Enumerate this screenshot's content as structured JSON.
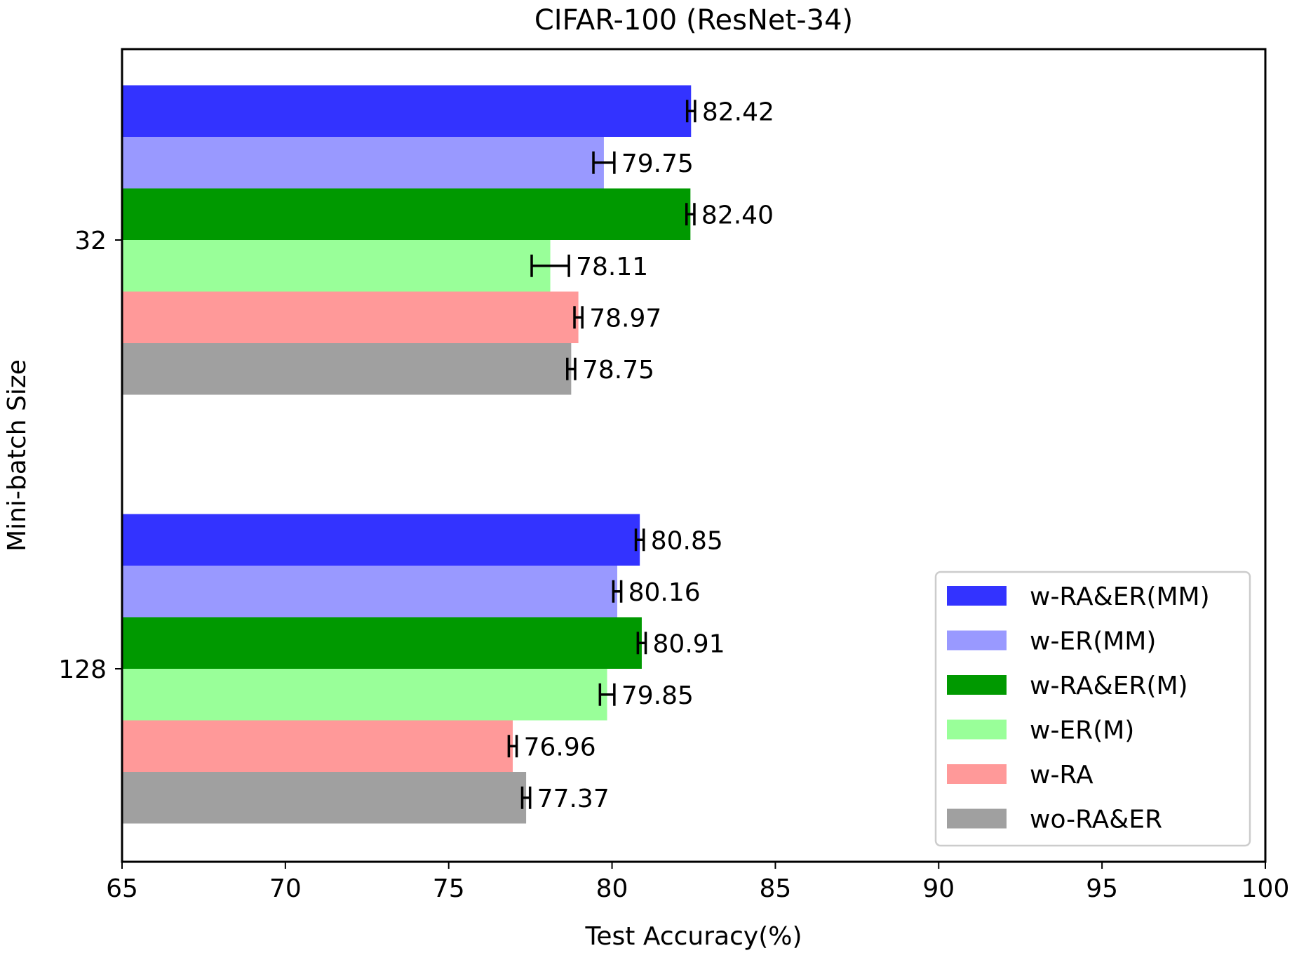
{
  "chart_data": {
    "type": "bar",
    "orientation": "horizontal",
    "title": "CIFAR-100 (ResNet-34)",
    "xlabel": "Test Accuracy(%)",
    "ylabel": "Mini-batch Size",
    "xlim": [
      65,
      100
    ],
    "xticks": [
      "65",
      "70",
      "75",
      "80",
      "85",
      "90",
      "95",
      "100"
    ],
    "categories": [
      "32",
      "128"
    ],
    "legend_position": "lower-right",
    "series": [
      {
        "name": "w-RA&ER(MM)",
        "color": "#3333ff",
        "values": [
          82.42,
          80.85
        ],
        "labels": [
          "82.42",
          "80.85"
        ],
        "errors": [
          0.12,
          0.12
        ]
      },
      {
        "name": "w-ER(MM)",
        "color": "#9999ff",
        "values": [
          79.75,
          80.16
        ],
        "labels": [
          "79.75",
          "80.16"
        ],
        "errors": [
          0.32,
          0.12
        ]
      },
      {
        "name": "w-RA&ER(M)",
        "color": "#009900",
        "values": [
          82.4,
          80.91
        ],
        "labels": [
          "82.40",
          "80.91"
        ],
        "errors": [
          0.12,
          0.12
        ]
      },
      {
        "name": "w-ER(M)",
        "color": "#99ff99",
        "values": [
          78.11,
          79.85
        ],
        "labels": [
          "78.11",
          "79.85"
        ],
        "errors": [
          0.57,
          0.22
        ]
      },
      {
        "name": "w-RA",
        "color": "#ff9999",
        "values": [
          78.97,
          76.96
        ],
        "labels": [
          "78.97",
          "76.96"
        ],
        "errors": [
          0.12,
          0.12
        ]
      },
      {
        "name": "wo-RA&ER",
        "color": "#a0a0a0",
        "values": [
          78.75,
          77.37
        ],
        "labels": [
          "78.75",
          "77.37"
        ],
        "errors": [
          0.12,
          0.12
        ]
      }
    ]
  }
}
